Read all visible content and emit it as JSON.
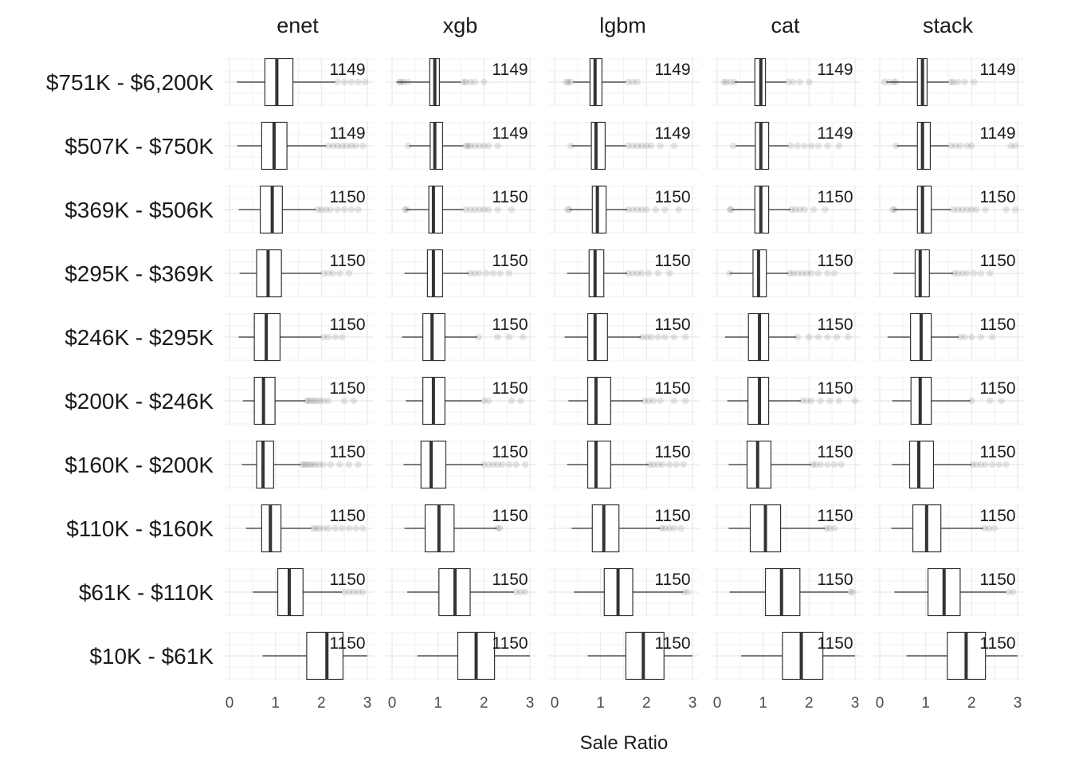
{
  "chart_data": {
    "type": "boxplot",
    "xlabel": "Sale Ratio",
    "xlim": [
      0,
      3
    ],
    "x_ticks": [
      0,
      1,
      2,
      3
    ],
    "facet_columns": [
      "enet",
      "xgb",
      "lgbm",
      "cat",
      "stack"
    ],
    "price_bins": [
      {
        "label": "$751K - $6,200K",
        "count": "1149"
      },
      {
        "label": "$507K - $750K",
        "count": "1149"
      },
      {
        "label": "$369K - $506K",
        "count": "1150"
      },
      {
        "label": "$295K - $369K",
        "count": "1150"
      },
      {
        "label": "$246K - $295K",
        "count": "1150"
      },
      {
        "label": "$200K - $246K",
        "count": "1150"
      },
      {
        "label": "$160K - $200K",
        "count": "1150"
      },
      {
        "label": "$110K - $160K",
        "count": "1150"
      },
      {
        "label": "$61K - $110K",
        "count": "1150"
      },
      {
        "label": "$10K - $61K",
        "count": "1150"
      }
    ],
    "boxes": {
      "enet": [
        {
          "lw": 0.16,
          "q1": 0.77,
          "med": 1.03,
          "q3": 1.38,
          "uw": 2.3,
          "out": [
            2.35,
            2.5,
            2.65,
            2.8,
            2.95
          ]
        },
        {
          "lw": 0.17,
          "q1": 0.7,
          "med": 0.97,
          "q3": 1.25,
          "uw": 2.1,
          "out": [
            2.15,
            2.25,
            2.35,
            2.45,
            2.55,
            2.65,
            2.75,
            2.9
          ]
        },
        {
          "lw": 0.2,
          "q1": 0.67,
          "med": 0.93,
          "q3": 1.15,
          "uw": 1.88,
          "out": [
            1.92,
            2.0,
            2.1,
            2.2,
            2.35,
            2.5,
            2.65,
            2.8
          ]
        },
        {
          "lw": 0.22,
          "q1": 0.59,
          "med": 0.84,
          "q3": 1.13,
          "uw": 2.0,
          "out": [
            2.05,
            2.15,
            2.25,
            2.4,
            2.6
          ]
        },
        {
          "lw": 0.2,
          "q1": 0.54,
          "med": 0.8,
          "q3": 1.1,
          "uw": 2.0,
          "out": [
            2.05,
            2.15,
            2.3,
            2.45
          ]
        },
        {
          "lw": 0.29,
          "q1": 0.54,
          "med": 0.74,
          "q3": 0.99,
          "uw": 1.65,
          "out": [
            1.68,
            1.72,
            1.78,
            1.84,
            1.9,
            1.97,
            2.05,
            2.15,
            2.5,
            2.7
          ]
        },
        {
          "lw": 0.27,
          "q1": 0.59,
          "med": 0.73,
          "q3": 0.96,
          "uw": 1.55,
          "out": [
            1.58,
            1.63,
            1.68,
            1.74,
            1.8,
            1.87,
            1.95,
            2.05,
            2.2,
            2.4,
            2.6,
            2.8
          ]
        },
        {
          "lw": 0.36,
          "q1": 0.7,
          "med": 0.89,
          "q3": 1.12,
          "uw": 1.78,
          "out": [
            1.82,
            1.88,
            1.95,
            2.05,
            2.15,
            2.3,
            2.45,
            2.6,
            2.75,
            2.9
          ]
        },
        {
          "lw": 0.51,
          "q1": 1.05,
          "med": 1.3,
          "q3": 1.6,
          "uw": 2.45,
          "out": [
            2.5,
            2.6,
            2.7,
            2.8,
            2.9
          ]
        },
        {
          "lw": 0.72,
          "q1": 1.68,
          "med": 2.12,
          "q3": 2.47,
          "uw": 3.0,
          "out": []
        }
      ],
      "xgb": [
        {
          "lw": 0.1,
          "q1": 0.82,
          "med": 0.93,
          "q3": 1.03,
          "uw": 1.5,
          "out": [
            0.15,
            0.2,
            0.25,
            0.35,
            1.55,
            1.6,
            1.7,
            1.8,
            2.0
          ]
        },
        {
          "lw": 0.37,
          "q1": 0.83,
          "med": 0.93,
          "q3": 1.1,
          "uw": 1.55,
          "out": [
            0.35,
            1.6,
            1.65,
            1.7,
            1.8,
            1.9,
            2.0,
            2.1,
            2.3
          ]
        },
        {
          "lw": 0.3,
          "q1": 0.8,
          "med": 0.9,
          "q3": 1.1,
          "uw": 1.55,
          "out": [
            0.28,
            0.32,
            1.6,
            1.7,
            1.8,
            1.9,
            2.0,
            2.1,
            2.3,
            2.6
          ]
        },
        {
          "lw": 0.27,
          "q1": 0.77,
          "med": 0.9,
          "q3": 1.1,
          "uw": 1.67,
          "out": [
            1.7,
            1.8,
            1.9,
            2.05,
            2.2,
            2.35,
            2.55
          ]
        },
        {
          "lw": 0.22,
          "q1": 0.67,
          "med": 0.87,
          "q3": 1.15,
          "uw": 1.85,
          "out": [
            1.88,
            2.3,
            2.55,
            2.85
          ]
        },
        {
          "lw": 0.3,
          "q1": 0.67,
          "med": 0.9,
          "q3": 1.15,
          "uw": 1.95,
          "out": [
            2.0,
            2.1,
            2.6,
            2.8
          ]
        },
        {
          "lw": 0.25,
          "q1": 0.63,
          "med": 0.85,
          "q3": 1.17,
          "uw": 1.98,
          "out": [
            2.0,
            2.1,
            2.2,
            2.3,
            2.4,
            2.55,
            2.7,
            2.9
          ]
        },
        {
          "lw": 0.27,
          "q1": 0.72,
          "med": 1.02,
          "q3": 1.35,
          "uw": 2.28,
          "out": [
            2.3,
            2.35
          ]
        },
        {
          "lw": 0.33,
          "q1": 1.02,
          "med": 1.37,
          "q3": 1.7,
          "uw": 2.65,
          "out": [
            2.7,
            2.8,
            2.9
          ]
        },
        {
          "lw": 0.55,
          "q1": 1.43,
          "med": 1.83,
          "q3": 2.23,
          "uw": 3.0,
          "out": []
        }
      ],
      "lgbm": [
        {
          "lw": 0.4,
          "q1": 0.77,
          "med": 0.88,
          "q3": 1.03,
          "uw": 1.55,
          "out": [
            0.25,
            0.3,
            0.35,
            1.6,
            1.7,
            1.8
          ]
        },
        {
          "lw": 0.37,
          "q1": 0.8,
          "med": 0.9,
          "q3": 1.1,
          "uw": 1.55,
          "out": [
            0.35,
            1.6,
            1.7,
            1.8,
            1.9,
            2.0,
            2.1,
            2.3,
            2.6
          ]
        },
        {
          "lw": 0.32,
          "q1": 0.82,
          "med": 0.93,
          "q3": 1.12,
          "uw": 1.58,
          "out": [
            0.28,
            0.32,
            1.6,
            1.7,
            1.8,
            1.9,
            2.0,
            2.2,
            2.4,
            2.7
          ]
        },
        {
          "lw": 0.27,
          "q1": 0.75,
          "med": 0.88,
          "q3": 1.07,
          "uw": 1.58,
          "out": [
            1.6,
            1.7,
            1.8,
            1.9,
            2.05,
            2.25,
            2.5
          ]
        },
        {
          "lw": 0.22,
          "q1": 0.72,
          "med": 0.88,
          "q3": 1.15,
          "uw": 1.88,
          "out": [
            1.9,
            2.0,
            2.1,
            2.25,
            2.4,
            2.6,
            2.85
          ]
        },
        {
          "lw": 0.3,
          "q1": 0.72,
          "med": 0.9,
          "q3": 1.22,
          "uw": 1.92,
          "out": [
            1.95,
            2.05,
            2.15,
            2.3,
            2.6,
            2.85
          ]
        },
        {
          "lw": 0.27,
          "q1": 0.72,
          "med": 0.9,
          "q3": 1.22,
          "uw": 2.05,
          "out": [
            2.07,
            2.15,
            2.25,
            2.35,
            2.5,
            2.65,
            2.8
          ]
        },
        {
          "lw": 0.37,
          "q1": 0.82,
          "med": 1.07,
          "q3": 1.4,
          "uw": 2.3,
          "out": [
            2.33,
            2.4,
            2.5,
            2.6,
            2.75
          ]
        },
        {
          "lw": 0.42,
          "q1": 1.08,
          "med": 1.38,
          "q3": 1.7,
          "uw": 2.8,
          "out": [
            2.82,
            2.9
          ]
        },
        {
          "lw": 0.72,
          "q1": 1.55,
          "med": 1.93,
          "q3": 2.38,
          "uw": 3.0,
          "out": []
        }
      ],
      "cat": [
        {
          "lw": 0.38,
          "q1": 0.82,
          "med": 0.95,
          "q3": 1.05,
          "uw": 1.5,
          "out": [
            0.15,
            0.2,
            0.3,
            0.38,
            1.55,
            1.65,
            1.8,
            2.0
          ]
        },
        {
          "lw": 0.4,
          "q1": 0.83,
          "med": 0.95,
          "q3": 1.12,
          "uw": 1.55,
          "out": [
            0.35,
            1.6,
            1.75,
            1.9,
            2.05,
            2.2,
            2.4,
            2.65
          ]
        },
        {
          "lw": 0.32,
          "q1": 0.82,
          "med": 0.95,
          "q3": 1.12,
          "uw": 1.6,
          "out": [
            0.28,
            0.3,
            1.62,
            1.7,
            1.8,
            1.9,
            2.1,
            2.35
          ]
        },
        {
          "lw": 0.27,
          "q1": 0.78,
          "med": 0.9,
          "q3": 1.07,
          "uw": 1.55,
          "out": [
            0.27,
            1.58,
            1.65,
            1.75,
            1.85,
            1.95,
            2.05,
            2.2,
            2.4,
            2.55
          ]
        },
        {
          "lw": 0.17,
          "q1": 0.68,
          "med": 0.92,
          "q3": 1.12,
          "uw": 1.72,
          "out": [
            1.75,
            2.0,
            2.2,
            2.4,
            2.6,
            2.85
          ]
        },
        {
          "lw": 0.22,
          "q1": 0.67,
          "med": 0.92,
          "q3": 1.12,
          "uw": 1.82,
          "out": [
            1.85,
            1.95,
            2.05,
            2.25,
            2.45,
            2.65,
            3.0
          ]
        },
        {
          "lw": 0.25,
          "q1": 0.65,
          "med": 0.88,
          "q3": 1.17,
          "uw": 2.05,
          "out": [
            2.08,
            2.15,
            2.25,
            2.4,
            2.55,
            2.7
          ]
        },
        {
          "lw": 0.25,
          "q1": 0.72,
          "med": 1.05,
          "q3": 1.38,
          "uw": 2.35,
          "out": [
            2.38,
            2.45,
            2.55
          ]
        },
        {
          "lw": 0.27,
          "q1": 1.05,
          "med": 1.4,
          "q3": 1.8,
          "uw": 2.85,
          "out": [
            2.9,
            2.95
          ]
        },
        {
          "lw": 0.52,
          "q1": 1.42,
          "med": 1.83,
          "q3": 2.3,
          "uw": 3.0,
          "out": []
        }
      ],
      "stack": [
        {
          "lw": 0.15,
          "q1": 0.82,
          "med": 0.93,
          "q3": 1.03,
          "uw": 1.5,
          "out": [
            0.1,
            0.2,
            0.3,
            0.35,
            1.55,
            1.6,
            1.7,
            1.85,
            2.05
          ]
        },
        {
          "lw": 0.37,
          "q1": 0.82,
          "med": 0.93,
          "q3": 1.1,
          "uw": 1.5,
          "out": [
            0.35,
            1.55,
            1.65,
            1.75,
            1.9,
            2.0,
            2.85,
            2.95
          ]
        },
        {
          "lw": 0.3,
          "q1": 0.82,
          "med": 0.93,
          "q3": 1.12,
          "uw": 1.55,
          "out": [
            0.28,
            0.32,
            1.6,
            1.7,
            1.8,
            1.9,
            2.0,
            2.1,
            2.3,
            2.75,
            2.95
          ]
        },
        {
          "lw": 0.3,
          "q1": 0.77,
          "med": 0.88,
          "q3": 1.08,
          "uw": 1.6,
          "out": [
            1.62,
            1.7,
            1.8,
            1.9,
            2.05,
            2.2,
            2.4
          ]
        },
        {
          "lw": 0.17,
          "q1": 0.67,
          "med": 0.9,
          "q3": 1.12,
          "uw": 1.72,
          "out": [
            1.75,
            1.85,
            2.0,
            2.2,
            2.45
          ]
        },
        {
          "lw": 0.27,
          "q1": 0.68,
          "med": 0.88,
          "q3": 1.12,
          "uw": 1.97,
          "out": [
            2.0,
            2.4,
            2.65
          ]
        },
        {
          "lw": 0.27,
          "q1": 0.65,
          "med": 0.85,
          "q3": 1.17,
          "uw": 2.0,
          "out": [
            2.02,
            2.1,
            2.2,
            2.3,
            2.45,
            2.6,
            2.75
          ]
        },
        {
          "lw": 0.25,
          "q1": 0.72,
          "med": 1.02,
          "q3": 1.33,
          "uw": 2.25,
          "out": [
            2.28,
            2.38,
            2.5
          ]
        },
        {
          "lw": 0.32,
          "q1": 1.05,
          "med": 1.4,
          "q3": 1.75,
          "uw": 2.75,
          "out": [
            2.8,
            2.9
          ]
        },
        {
          "lw": 0.58,
          "q1": 1.47,
          "med": 1.88,
          "q3": 2.3,
          "uw": 3.0,
          "out": []
        }
      ]
    }
  }
}
